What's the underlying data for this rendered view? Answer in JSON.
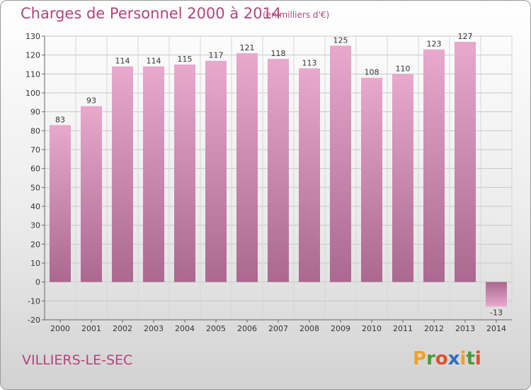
{
  "chart_data": {
    "type": "bar",
    "title": "Charges de Personnel 2000 à 2014",
    "subtitle": "(en milliers d'€)",
    "categories": [
      "2000",
      "2001",
      "2002",
      "2003",
      "2004",
      "2005",
      "2006",
      "2007",
      "2008",
      "2009",
      "2010",
      "2011",
      "2012",
      "2013",
      "2014"
    ],
    "values": [
      83,
      93,
      114,
      114,
      115,
      117,
      121,
      118,
      113,
      125,
      108,
      110,
      123,
      127,
      -13
    ],
    "value_labels": [
      "83",
      "93",
      "114",
      "114",
      "115",
      "117",
      "121",
      "118",
      "113",
      "125",
      "108",
      "110",
      "123",
      "127",
      "-13"
    ],
    "ylim": [
      -20,
      130
    ],
    "yticks": [
      -20,
      -10,
      0,
      10,
      20,
      30,
      40,
      50,
      60,
      70,
      80,
      90,
      100,
      110,
      120,
      130
    ],
    "grid": true,
    "xlabel": "",
    "ylabel": "",
    "colors": {
      "bar_top": "#e8a9cd",
      "bar_bottom": "#ab6890",
      "text": "#b0457e"
    }
  },
  "footer": {
    "commune": "VILLIERS-LE-SEC",
    "logo_letters": [
      "P",
      "r",
      "o",
      "x",
      "i",
      "t",
      "i"
    ],
    "logo_colors": [
      "#f2a02a",
      "#4a9a3a",
      "#e0502d",
      "#2f6fc0",
      "#f2a02a",
      "#4a9a3a",
      "#e0502d"
    ]
  }
}
